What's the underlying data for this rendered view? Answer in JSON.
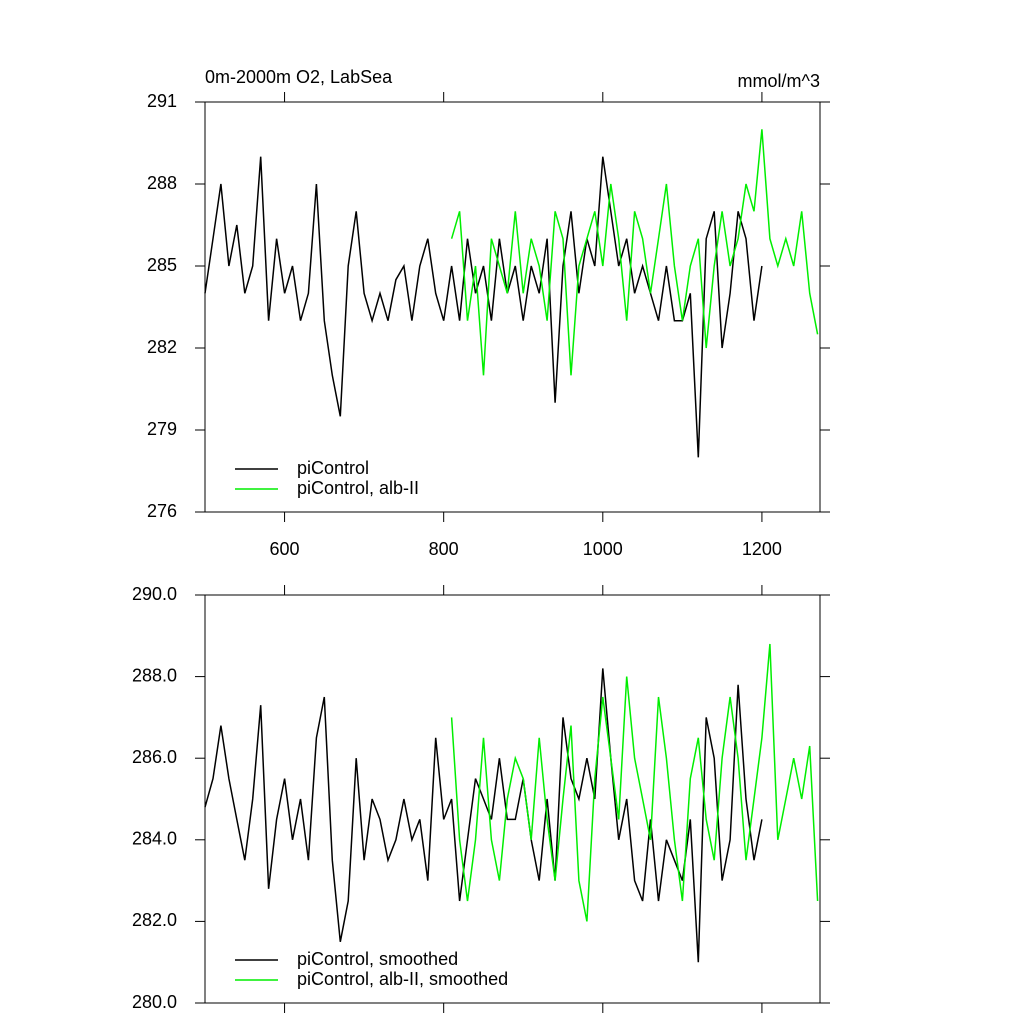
{
  "chart_data": [
    {
      "type": "line",
      "title": "0m-2000m O2, LabSea",
      "units": "mmol/m^3",
      "xlim": [
        500,
        1273
      ],
      "xticks": [
        600,
        800,
        1000,
        1200
      ],
      "xtick_labels": true,
      "ylim": [
        276,
        291
      ],
      "yticks": [
        276,
        279,
        282,
        285,
        288,
        291
      ],
      "series": [
        {
          "name": "piControl",
          "color": "#000000",
          "x": [
            500,
            510,
            520,
            530,
            540,
            550,
            560,
            570,
            580,
            590,
            600,
            610,
            620,
            630,
            640,
            650,
            660,
            670,
            680,
            690,
            700,
            710,
            720,
            730,
            740,
            750,
            760,
            770,
            780,
            790,
            800,
            810,
            820,
            830,
            840,
            850,
            860,
            870,
            880,
            890,
            900,
            910,
            920,
            930,
            940,
            950,
            960,
            970,
            980,
            990,
            1000,
            1010,
            1020,
            1030,
            1040,
            1050,
            1060,
            1070,
            1080,
            1090,
            1100,
            1110,
            1120,
            1130,
            1140,
            1150,
            1160,
            1170,
            1180,
            1190,
            1200
          ],
          "values": [
            284,
            286,
            288,
            285,
            286.5,
            284,
            285,
            289,
            283,
            286,
            284,
            285,
            283,
            284,
            288,
            283,
            281,
            279.5,
            285,
            287,
            284,
            283,
            284,
            283,
            284.5,
            285,
            283,
            285,
            286,
            284,
            283,
            285,
            283,
            286,
            284,
            285,
            283,
            286,
            284,
            285,
            283,
            285,
            284,
            286,
            280,
            285,
            287,
            284,
            286,
            285,
            289,
            287,
            285,
            286,
            284,
            285,
            284,
            283,
            285,
            283,
            283,
            284,
            278,
            286,
            287,
            282,
            284,
            287,
            286,
            283,
            285
          ]
        },
        {
          "name": "piControl, alb-II",
          "color": "#00ee00",
          "x": [
            810,
            820,
            830,
            840,
            850,
            860,
            870,
            880,
            890,
            900,
            910,
            920,
            930,
            940,
            950,
            960,
            970,
            980,
            990,
            1000,
            1010,
            1020,
            1030,
            1040,
            1050,
            1060,
            1070,
            1080,
            1090,
            1100,
            1110,
            1120,
            1130,
            1140,
            1150,
            1160,
            1170,
            1180,
            1190,
            1200,
            1210,
            1220,
            1230,
            1240,
            1250,
            1260,
            1270
          ],
          "values": [
            286,
            287,
            283,
            285,
            281,
            286,
            285,
            284,
            287,
            284,
            286,
            285,
            283,
            287,
            286,
            281,
            285,
            286,
            287,
            285,
            288,
            286,
            283,
            287,
            286,
            284,
            286,
            288,
            285,
            283,
            285,
            286,
            282,
            285,
            287,
            285,
            286,
            288,
            287,
            290,
            286,
            285,
            286,
            285,
            287,
            284,
            282.5
          ]
        }
      ]
    },
    {
      "type": "line",
      "xlim": [
        500,
        1273
      ],
      "xticks": [
        600,
        800,
        1000,
        1200
      ],
      "xtick_labels": false,
      "ylim": [
        280,
        290
      ],
      "yticks": [
        {
          "value": 280,
          "label": "280.0"
        },
        {
          "value": 282,
          "label": "282.0"
        },
        {
          "value": 284,
          "label": "284.0"
        },
        {
          "value": 286,
          "label": "286.0"
        },
        {
          "value": 288,
          "label": "288.0"
        },
        {
          "value": 290,
          "label": "290.0"
        }
      ],
      "series": [
        {
          "name": "piControl, smoothed",
          "color": "#000000",
          "x": [
            500,
            510,
            520,
            530,
            540,
            550,
            560,
            570,
            580,
            590,
            600,
            610,
            620,
            630,
            640,
            650,
            660,
            670,
            680,
            690,
            700,
            710,
            720,
            730,
            740,
            750,
            760,
            770,
            780,
            790,
            800,
            810,
            820,
            830,
            840,
            850,
            860,
            870,
            880,
            890,
            900,
            910,
            920,
            930,
            940,
            950,
            960,
            970,
            980,
            990,
            1000,
            1010,
            1020,
            1030,
            1040,
            1050,
            1060,
            1070,
            1080,
            1090,
            1100,
            1110,
            1120,
            1130,
            1140,
            1150,
            1160,
            1170,
            1180,
            1190,
            1200
          ],
          "values": [
            284.8,
            285.5,
            286.8,
            285.5,
            284.5,
            283.5,
            285,
            287.3,
            282.8,
            284.5,
            285.5,
            284,
            285,
            283.5,
            286.5,
            287.5,
            283.5,
            281.5,
            282.5,
            286,
            283.5,
            285,
            284.5,
            283.5,
            284,
            285,
            284,
            284.5,
            283,
            286.5,
            284.5,
            285,
            282.5,
            284,
            285.5,
            285,
            284.5,
            286,
            284.5,
            284.5,
            285.5,
            284,
            283,
            285,
            283,
            287,
            285.5,
            285,
            286,
            285,
            288.2,
            286,
            284,
            285,
            283,
            282.5,
            284.5,
            282.5,
            284,
            283.5,
            283,
            284.5,
            281,
            287,
            286,
            283,
            284,
            287.8,
            285,
            283.5,
            284.5
          ]
        },
        {
          "name": "piControl, alb-II, smoothed",
          "color": "#00ee00",
          "x": [
            810,
            820,
            830,
            840,
            850,
            860,
            870,
            880,
            890,
            900,
            910,
            920,
            930,
            940,
            950,
            960,
            970,
            980,
            990,
            1000,
            1010,
            1020,
            1030,
            1040,
            1050,
            1060,
            1070,
            1080,
            1090,
            1100,
            1110,
            1120,
            1130,
            1140,
            1150,
            1160,
            1170,
            1180,
            1190,
            1200,
            1210,
            1220,
            1230,
            1240,
            1250,
            1260,
            1270
          ],
          "values": [
            287,
            284,
            282.5,
            284,
            286.5,
            284,
            283,
            285,
            286,
            285.5,
            284,
            286.5,
            284.5,
            283,
            285,
            286.8,
            283,
            282,
            285.5,
            287.5,
            286,
            284.5,
            288,
            286,
            285,
            284,
            287.5,
            286,
            284,
            282.5,
            285.5,
            286.5,
            284.5,
            283.5,
            286,
            287.5,
            286,
            283.5,
            285,
            286.5,
            288.8,
            284,
            285,
            286,
            285,
            286.3,
            282.5
          ]
        }
      ]
    }
  ]
}
